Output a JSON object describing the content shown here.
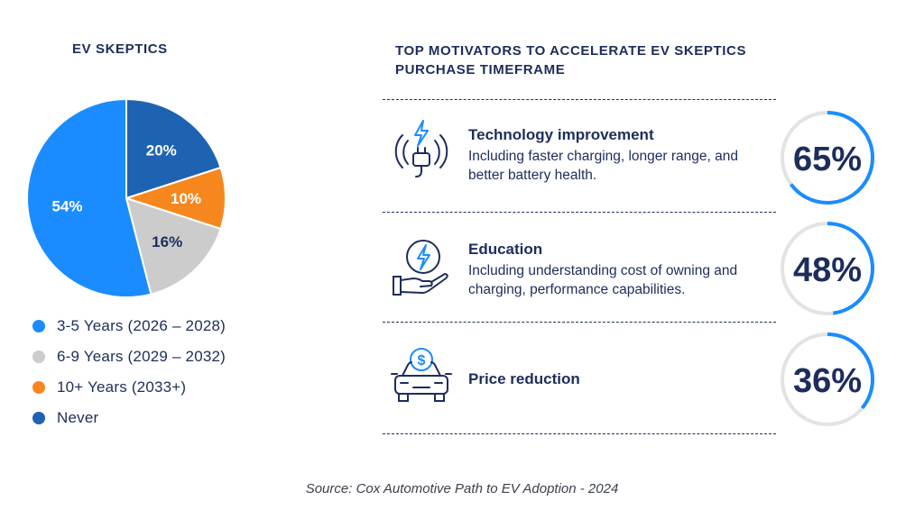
{
  "left_title": "EV SKEPTICS",
  "right_title": "TOP MOTIVATORS TO ACCELERATE EV SKEPTICS PURCHASE TIMEFRAME",
  "chart_data": {
    "type": "pie",
    "title": "EV SKEPTICS",
    "slices": [
      {
        "label": "Never",
        "value": 20,
        "display": "20%",
        "color": "#1e63b1",
        "text_color": "#ffffff"
      },
      {
        "label": "10+ Years (2033+)",
        "value": 10,
        "display": "10%",
        "color": "#f6871f",
        "text_color": "#ffffff"
      },
      {
        "label": "6-9 Years (2029 – 2032)",
        "value": 16,
        "display": "16%",
        "color": "#cccccc",
        "text_color": "#1d2d5c"
      },
      {
        "label": "3-5 Years (2026 – 2028)",
        "value": 54,
        "display": "54%",
        "color": "#1a8cff",
        "text_color": "#ffffff"
      }
    ],
    "legend": [
      {
        "label": "3-5 Years (2026 – 2028)",
        "color": "#1a8cff"
      },
      {
        "label": "6-9 Years (2029 – 2032)",
        "color": "#cccccc"
      },
      {
        "label": "10+ Years (2033+)",
        "color": "#f6871f"
      },
      {
        "label": "Never",
        "color": "#1e63b1"
      }
    ]
  },
  "motivators": [
    {
      "icon": "plug-lightning-icon",
      "title": "Technology improvement",
      "description": "Including faster charging, longer range, and better battery health.",
      "percent_value": 65,
      "percent_display": "65%"
    },
    {
      "icon": "hand-lightning-icon",
      "title": "Education",
      "description": "Including understanding cost of owning and charging, performance capabilities.",
      "percent_value": 48,
      "percent_display": "48%"
    },
    {
      "icon": "car-dollar-icon",
      "title": "Price reduction",
      "description": "",
      "percent_value": 36,
      "percent_display": "36%"
    }
  ],
  "colors": {
    "navy": "#1d2d5c",
    "ring_track": "#e3e3e3",
    "ring_fill": "#1a8cff",
    "icon_blue": "#1a8cff"
  },
  "source": "Source: Cox Automotive Path to EV Adoption - 2024"
}
